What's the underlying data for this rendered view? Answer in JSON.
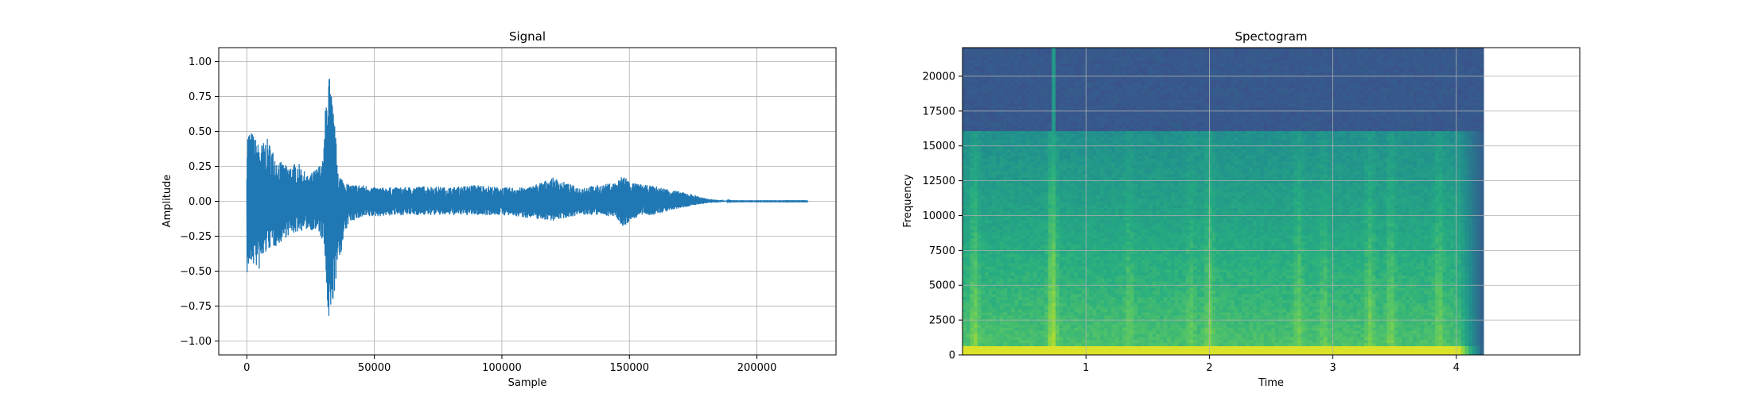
{
  "chart_data": [
    {
      "type": "line",
      "title": "Signal",
      "xlabel": "Sample",
      "ylabel": "Amplitude",
      "xlim": [
        -11000,
        231000
      ],
      "ylim": [
        -1.1,
        1.1
      ],
      "xticks": [
        0,
        50000,
        100000,
        150000,
        200000
      ],
      "xtick_labels": [
        "0",
        "50000",
        "100000",
        "150000",
        "200000"
      ],
      "yticks": [
        -1.0,
        -0.75,
        -0.5,
        -0.25,
        0.0,
        0.25,
        0.5,
        0.75,
        1.0
      ],
      "ytick_labels": [
        "−1.00",
        "−0.75",
        "−0.50",
        "−0.25",
        "0.00",
        "0.25",
        "0.50",
        "0.75",
        "1.00"
      ],
      "grid": true,
      "series_color": "#1f77b4",
      "envelope": {
        "x": [
          0,
          500,
          2000,
          5000,
          8000,
          12000,
          16000,
          20000,
          24000,
          28000,
          30000,
          31000,
          31500,
          32000,
          33000,
          34000,
          36000,
          38000,
          40000,
          45000,
          50000,
          60000,
          70000,
          80000,
          90000,
          100000,
          110000,
          120000,
          130000,
          140000,
          145000,
          148000,
          150000,
          155000,
          160000,
          165000,
          170000,
          175000,
          180000,
          185000,
          190000,
          220000
        ],
        "upper": [
          0.45,
          0.52,
          0.5,
          0.4,
          0.45,
          0.3,
          0.25,
          0.28,
          0.18,
          0.25,
          0.3,
          0.75,
          0.8,
          1.0,
          0.8,
          0.65,
          0.2,
          0.15,
          0.12,
          0.12,
          0.1,
          0.1,
          0.11,
          0.1,
          0.12,
          0.1,
          0.1,
          0.17,
          0.1,
          0.12,
          0.14,
          0.2,
          0.14,
          0.12,
          0.11,
          0.09,
          0.07,
          0.05,
          0.02,
          0.01,
          0.002,
          0.002
        ],
        "lower": [
          -0.53,
          -0.5,
          -0.45,
          -0.5,
          -0.35,
          -0.32,
          -0.25,
          -0.22,
          -0.2,
          -0.22,
          -0.3,
          -0.5,
          -0.8,
          -1.0,
          -0.85,
          -0.7,
          -0.45,
          -0.28,
          -0.15,
          -0.12,
          -0.11,
          -0.1,
          -0.1,
          -0.1,
          -0.1,
          -0.1,
          -0.12,
          -0.14,
          -0.1,
          -0.1,
          -0.12,
          -0.2,
          -0.14,
          -0.1,
          -0.1,
          -0.07,
          -0.05,
          -0.03,
          -0.015,
          -0.008,
          -0.002,
          -0.002
        ]
      }
    },
    {
      "type": "heatmap",
      "title": "Spectogram",
      "xlabel": "Time",
      "ylabel": "Frequency",
      "xlim": [
        0,
        5.0
      ],
      "ylim": [
        0,
        22050
      ],
      "data_time_range": [
        0,
        4.22
      ],
      "xticks": [
        1,
        2,
        3,
        4
      ],
      "xtick_labels": [
        "1",
        "2",
        "3",
        "4"
      ],
      "yticks": [
        0,
        2500,
        5000,
        7500,
        10000,
        12500,
        15000,
        17500,
        20000
      ],
      "ytick_labels": [
        "0",
        "2500",
        "5000",
        "7500",
        "10000",
        "12500",
        "15000",
        "17500",
        "20000"
      ],
      "grid": true,
      "colormap": "viridis",
      "cutoff_frequency": 16200,
      "onset_times": [
        0.1,
        0.73,
        1.35,
        1.85,
        2.0,
        2.72,
        2.93,
        3.3,
        3.47,
        3.86
      ],
      "onset_strengths": [
        0.6,
        1.0,
        0.35,
        0.3,
        0.55,
        0.5,
        0.35,
        0.55,
        0.5,
        0.5
      ]
    }
  ]
}
